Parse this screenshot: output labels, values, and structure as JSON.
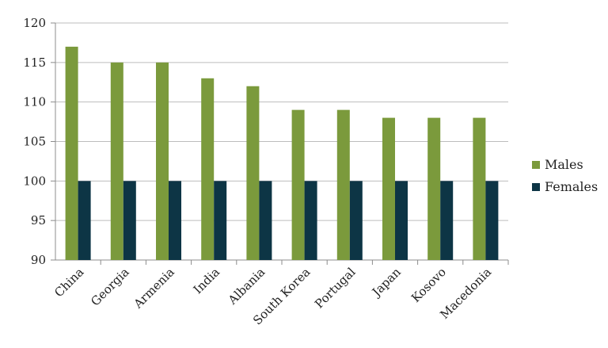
{
  "chart_data": {
    "type": "bar",
    "categories": [
      "China",
      "Georgia",
      "Armenia",
      "India",
      "Albania",
      "South Korea",
      "Portugal",
      "Japan",
      "Kosovo",
      "Macedonia"
    ],
    "series": [
      {
        "name": "Males",
        "color": "#7b9a3c",
        "values": [
          117,
          115,
          115,
          113,
          112,
          109,
          109,
          108,
          108,
          108
        ]
      },
      {
        "name": "Females",
        "color": "#0d3545",
        "values": [
          100,
          100,
          100,
          100,
          100,
          100,
          100,
          100,
          100,
          100
        ]
      }
    ],
    "ylim": [
      90,
      120
    ],
    "yticks": [
      90,
      95,
      100,
      105,
      110,
      115,
      120
    ],
    "grid": true,
    "legend_position": "right"
  }
}
